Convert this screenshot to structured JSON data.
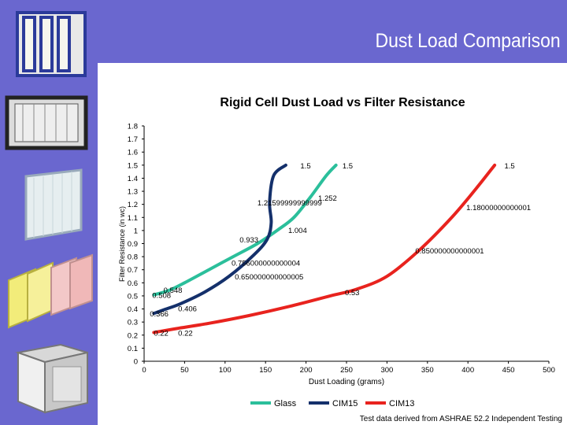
{
  "slide": {
    "title": "Dust Load Comparison",
    "footnote": "Test data derived from ASHRAE 52.2 Independent Testing",
    "band_color": "#6a67cf"
  },
  "thumbnails": [
    {
      "name": "v-bank-filter-image"
    },
    {
      "name": "panel-filter-image"
    },
    {
      "name": "pleated-filter-image"
    },
    {
      "name": "bag-filter-image"
    },
    {
      "name": "box-filter-image"
    }
  ],
  "chart_data": {
    "type": "line",
    "title": "Rigid Cell Dust Load vs Filter Resistance",
    "xlabel": "Dust Loading (grams)",
    "ylabel": "Filter Resistance (in wc)",
    "xlim": [
      0,
      500
    ],
    "ylim": [
      0,
      1.8
    ],
    "x_ticks": [
      0,
      50,
      100,
      150,
      200,
      250,
      300,
      350,
      400,
      450,
      500
    ],
    "y_ticks": [
      0,
      0.1,
      0.2,
      0.3,
      0.4,
      0.5,
      0.6,
      0.7,
      0.8,
      0.9,
      1,
      1.1,
      1.2,
      1.3,
      1.4,
      1.5,
      1.6,
      1.7,
      1.8
    ],
    "grid": false,
    "legend_position": "bottom",
    "series": [
      {
        "name": "Glass",
        "color": "#2bbf9b",
        "x": [
          12,
          30,
          50,
          80,
          110,
          140,
          165,
          185,
          205,
          225,
          237
        ],
        "y": [
          0.508,
          0.54,
          0.6,
          0.7,
          0.8,
          0.9,
          1.004,
          1.1,
          1.252,
          1.42,
          1.5
        ],
        "labels": [
          {
            "x": 10,
            "y": 0.508,
            "text": "0.508"
          },
          {
            "x": 24,
            "y": 0.548,
            "text": "0.548"
          },
          {
            "x": 108,
            "y": 0.756,
            "text": "0.756000000000004"
          },
          {
            "x": 178,
            "y": 1.004,
            "text": "1.004"
          },
          {
            "x": 215,
            "y": 1.252,
            "text": "1.252"
          },
          {
            "x": 245,
            "y": 1.5,
            "text": "1.5"
          }
        ]
      },
      {
        "name": "CIM15",
        "color": "#14306b",
        "x": [
          12,
          25,
          45,
          75,
          105,
          135,
          152,
          157,
          155,
          160,
          175
        ],
        "y": [
          0.366,
          0.395,
          0.44,
          0.53,
          0.65,
          0.81,
          0.933,
          1.06,
          1.216,
          1.42,
          1.5
        ],
        "labels": [
          {
            "x": 7,
            "y": 0.366,
            "text": "0.366"
          },
          {
            "x": 42,
            "y": 0.406,
            "text": "0.406"
          },
          {
            "x": 112,
            "y": 0.65,
            "text": "0.650000000000005"
          },
          {
            "x": 118,
            "y": 0.933,
            "text": "0.933"
          },
          {
            "x": 140,
            "y": 1.216,
            "text": "1.21599999999999"
          },
          {
            "x": 193,
            "y": 1.5,
            "text": "1.5"
          }
        ]
      },
      {
        "name": "CIM13",
        "color": "#e8231e",
        "x": [
          12,
          40,
          80,
          130,
          180,
          230,
          262,
          300,
          340,
          380,
          410,
          433
        ],
        "y": [
          0.22,
          0.25,
          0.29,
          0.35,
          0.42,
          0.5,
          0.55,
          0.65,
          0.85,
          1.1,
          1.32,
          1.5
        ],
        "labels": [
          {
            "x": 12,
            "y": 0.22,
            "text": "0.22"
          },
          {
            "x": 42,
            "y": 0.22,
            "text": "0.22"
          },
          {
            "x": 248,
            "y": 0.53,
            "text": "0.53"
          },
          {
            "x": 335,
            "y": 0.85,
            "text": "0.850000000000001"
          },
          {
            "x": 398,
            "y": 1.18,
            "text": "1.18000000000001"
          },
          {
            "x": 445,
            "y": 1.5,
            "text": "1.5"
          }
        ]
      }
    ]
  }
}
